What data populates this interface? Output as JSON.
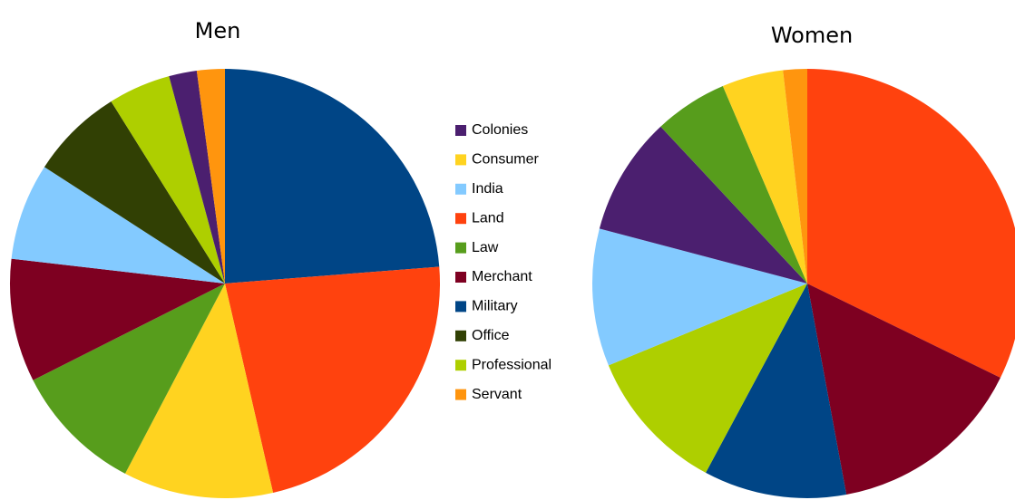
{
  "chart_data": [
    {
      "type": "pie",
      "title": "Men",
      "categories": [
        "Military",
        "Land",
        "Consumer",
        "Law",
        "Merchant",
        "India",
        "Office",
        "Professional",
        "Colonies",
        "Servant"
      ],
      "values": [
        23.8,
        22.7,
        11.3,
        9.9,
        9.3,
        7.3,
        7.0,
        4.7,
        2.1,
        2.1
      ],
      "colors": [
        "#004586",
        "#ff420e",
        "#ffd320",
        "#579d1c",
        "#7e0021",
        "#83caff",
        "#314004",
        "#aecf00",
        "#4b1f6f",
        "#ff950e"
      ]
    },
    {
      "type": "pie",
      "title": "Women",
      "categories": [
        "Land",
        "Merchant",
        "Military",
        "Professional",
        "India",
        "Colonies",
        "Law",
        "Consumer",
        "Servant"
      ],
      "values": [
        32.1,
        14.8,
        10.7,
        10.9,
        10.3,
        8.9,
        5.5,
        4.6,
        1.8
      ],
      "colors": [
        "#ff420e",
        "#7e0021",
        "#004586",
        "#aecf00",
        "#83caff",
        "#4b1f6f",
        "#579d1c",
        "#ffd320",
        "#ff950e"
      ]
    }
  ],
  "legend": [
    {
      "name": "Colonies",
      "color": "#4b1f6f"
    },
    {
      "name": "Consumer",
      "color": "#ffd320"
    },
    {
      "name": "India",
      "color": "#83caff"
    },
    {
      "name": "Land",
      "color": "#ff420e"
    },
    {
      "name": "Law",
      "color": "#579d1c"
    },
    {
      "name": "Merchant",
      "color": "#7e0021"
    },
    {
      "name": "Military",
      "color": "#004586"
    },
    {
      "name": "Office",
      "color": "#314004"
    },
    {
      "name": "Professional",
      "color": "#aecf00"
    },
    {
      "name": "Servant",
      "color": "#ff950e"
    }
  ]
}
